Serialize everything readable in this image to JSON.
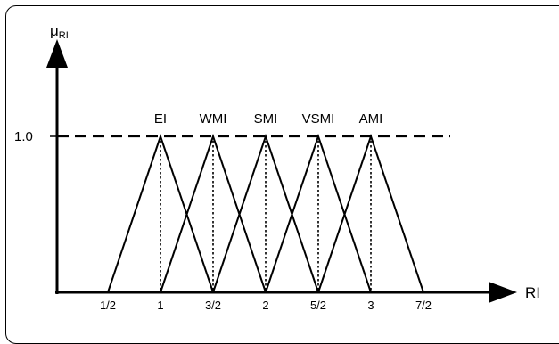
{
  "chart_data": {
    "type": "line",
    "title": "",
    "ylabel": "μ",
    "ylabel_sub": "RI",
    "xlabel": "RI",
    "y_tick_label": "1.0",
    "y_tick_value": 1.0,
    "x_ticks": [
      {
        "label": "1/2",
        "value": 0.5
      },
      {
        "label": "1",
        "value": 1.0
      },
      {
        "label": "3/2",
        "value": 1.5
      },
      {
        "label": "2",
        "value": 2.0
      },
      {
        "label": "5/2",
        "value": 2.5
      },
      {
        "label": "3",
        "value": 3.0
      },
      {
        "label": "7/2",
        "value": 3.5
      }
    ],
    "series": [
      {
        "name": "EI",
        "points": [
          [
            0.5,
            0
          ],
          [
            1.0,
            1.0
          ],
          [
            1.5,
            0
          ]
        ]
      },
      {
        "name": "WMI",
        "points": [
          [
            1.0,
            0
          ],
          [
            1.5,
            1.0
          ],
          [
            2.0,
            0
          ]
        ]
      },
      {
        "name": "SMI",
        "points": [
          [
            1.5,
            0
          ],
          [
            2.0,
            1.0
          ],
          [
            2.5,
            0
          ]
        ]
      },
      {
        "name": "VSMI",
        "points": [
          [
            2.0,
            0
          ],
          [
            2.5,
            1.0
          ],
          [
            3.0,
            0
          ]
        ]
      },
      {
        "name": "AMI",
        "points": [
          [
            2.5,
            0
          ],
          [
            3.0,
            1.0
          ],
          [
            3.5,
            0
          ]
        ]
      }
    ]
  }
}
